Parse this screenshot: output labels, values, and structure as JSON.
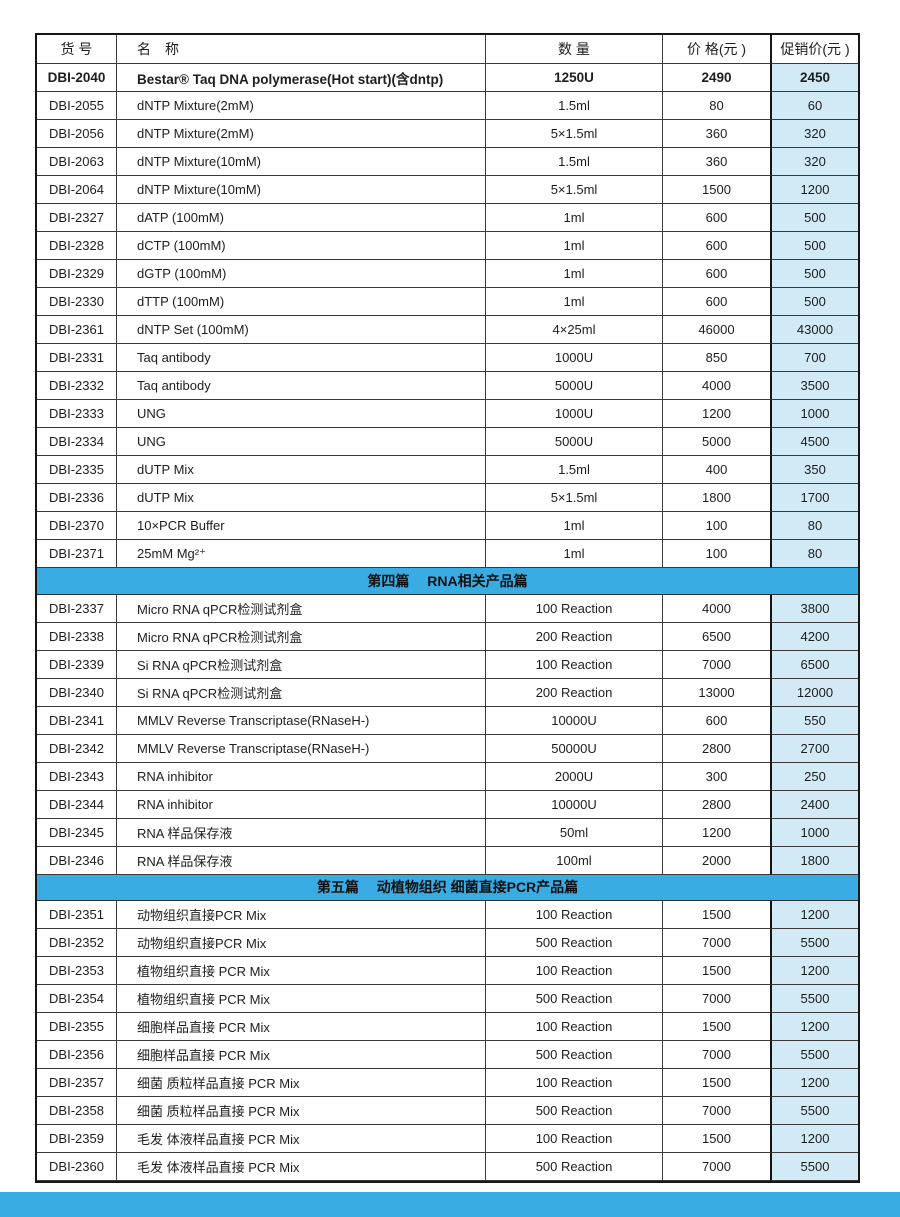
{
  "colors": {
    "band_blue": "#3aace4",
    "promo_cell_blue": "#d2e9f6",
    "border_dark": "#161616"
  },
  "table": {
    "headers": [
      "货 号",
      "名　称",
      "数 量",
      "价 格(元 )",
      "促销价(元 )"
    ],
    "sections": [
      {
        "band": null,
        "rows": [
          {
            "code": "DBI-2040",
            "name": "Bestar® Taq DNA polymerase(Hot start)(含dntp)",
            "qty": "1250U",
            "price": "2490",
            "promo": "2450",
            "bold": true
          },
          {
            "code": "DBI-2055",
            "name": "dNTP Mixture(2mM)",
            "qty": "1.5ml",
            "price": "80",
            "promo": "60"
          },
          {
            "code": "DBI-2056",
            "name": "dNTP Mixture(2mM)",
            "qty": "5×1.5ml",
            "price": "360",
            "promo": "320"
          },
          {
            "code": "DBI-2063",
            "name": "dNTP Mixture(10mM)",
            "qty": "1.5ml",
            "price": "360",
            "promo": "320"
          },
          {
            "code": "DBI-2064",
            "name": "dNTP Mixture(10mM)",
            "qty": "5×1.5ml",
            "price": "1500",
            "promo": "1200"
          },
          {
            "code": "DBI-2327",
            "name": "dATP (100mM)",
            "qty": "1ml",
            "price": "600",
            "promo": "500"
          },
          {
            "code": "DBI-2328",
            "name": "dCTP (100mM)",
            "qty": "1ml",
            "price": "600",
            "promo": "500"
          },
          {
            "code": "DBI-2329",
            "name": "dGTP (100mM)",
            "qty": "1ml",
            "price": "600",
            "promo": "500"
          },
          {
            "code": "DBI-2330",
            "name": "dTTP (100mM)",
            "qty": "1ml",
            "price": "600",
            "promo": "500"
          },
          {
            "code": "DBI-2361",
            "name": "dNTP Set (100mM)",
            "qty": "4×25ml",
            "price": "46000",
            "promo": "43000"
          },
          {
            "code": "DBI-2331",
            "name": "Taq antibody",
            "qty": "1000U",
            "price": "850",
            "promo": "700"
          },
          {
            "code": "DBI-2332",
            "name": "Taq antibody",
            "qty": "5000U",
            "price": "4000",
            "promo": "3500"
          },
          {
            "code": "DBI-2333",
            "name": "UNG",
            "qty": "1000U",
            "price": "1200",
            "promo": "1000"
          },
          {
            "code": "DBI-2334",
            "name": "UNG",
            "qty": "5000U",
            "price": "5000",
            "promo": "4500"
          },
          {
            "code": "DBI-2335",
            "name": "dUTP Mix",
            "qty": "1.5ml",
            "price": "400",
            "promo": "350"
          },
          {
            "code": "DBI-2336",
            "name": "dUTP Mix",
            "qty": "5×1.5ml",
            "price": "1800",
            "promo": "1700"
          },
          {
            "code": "DBI-2370",
            "name": "10×PCR Buffer",
            "qty": "1ml",
            "price": "100",
            "promo": "80"
          },
          {
            "code": "DBI-2371",
            "name": "25mM Mg²⁺",
            "qty": "1ml",
            "price": "100",
            "promo": "80"
          }
        ]
      },
      {
        "band": "第四篇　 RNA相关产品篇",
        "rows": [
          {
            "code": "DBI-2337",
            "name": "Micro RNA qPCR检测试剂盒",
            "qty": "100 Reaction",
            "price": "4000",
            "promo": "3800"
          },
          {
            "code": "DBI-2338",
            "name": "Micro RNA qPCR检测试剂盒",
            "qty": "200 Reaction",
            "price": "6500",
            "promo": "4200"
          },
          {
            "code": "DBI-2339",
            "name": "Si RNA qPCR检测试剂盒",
            "qty": "100 Reaction",
            "price": "7000",
            "promo": "6500"
          },
          {
            "code": "DBI-2340",
            "name": "Si RNA qPCR检测试剂盒",
            "qty": "200 Reaction",
            "price": "13000",
            "promo": "12000"
          },
          {
            "code": "DBI-2341",
            "name": "MMLV Reverse Transcriptase(RNaseH-)",
            "qty": "10000U",
            "price": "600",
            "promo": "550"
          },
          {
            "code": "DBI-2342",
            "name": "MMLV Reverse Transcriptase(RNaseH-)",
            "qty": "50000U",
            "price": "2800",
            "promo": "2700"
          },
          {
            "code": "DBI-2343",
            "name": "RNA inhibitor",
            "qty": "2000U",
            "price": "300",
            "promo": "250"
          },
          {
            "code": "DBI-2344",
            "name": "RNA inhibitor",
            "qty": "10000U",
            "price": "2800",
            "promo": "2400"
          },
          {
            "code": "DBI-2345",
            "name": "RNA 样品保存液",
            "qty": "50ml",
            "price": "1200",
            "promo": "1000"
          },
          {
            "code": "DBI-2346",
            "name": "RNA 样品保存液",
            "qty": "100ml",
            "price": "2000",
            "promo": "1800"
          }
        ]
      },
      {
        "band": "第五篇　 动植物组织 细菌直接PCR产品篇",
        "rows": [
          {
            "code": "DBI-2351",
            "name": "动物组织直接PCR Mix",
            "qty": "100 Reaction",
            "price": "1500",
            "promo": "1200"
          },
          {
            "code": "DBI-2352",
            "name": "动物组织直接PCR Mix",
            "qty": "500 Reaction",
            "price": "7000",
            "promo": "5500"
          },
          {
            "code": "DBI-2353",
            "name": "植物组织直接 PCR Mix",
            "qty": "100 Reaction",
            "price": "1500",
            "promo": "1200"
          },
          {
            "code": "DBI-2354",
            "name": "植物组织直接 PCR Mix",
            "qty": "500 Reaction",
            "price": "7000",
            "promo": "5500"
          },
          {
            "code": "DBI-2355",
            "name": "细胞样品直接 PCR Mix",
            "qty": "100 Reaction",
            "price": "1500",
            "promo": "1200"
          },
          {
            "code": "DBI-2356",
            "name": "细胞样品直接 PCR Mix",
            "qty": "500 Reaction",
            "price": "7000",
            "promo": "5500"
          },
          {
            "code": "DBI-2357",
            "name": "细菌 质粒样品直接 PCR Mix",
            "qty": "100 Reaction",
            "price": "1500",
            "promo": "1200"
          },
          {
            "code": "DBI-2358",
            "name": "细菌 质粒样品直接 PCR Mix",
            "qty": "500 Reaction",
            "price": "7000",
            "promo": "5500"
          },
          {
            "code": "DBI-2359",
            "name": "毛发 体液样品直接 PCR Mix",
            "qty": "100 Reaction",
            "price": "1500",
            "promo": "1200"
          },
          {
            "code": "DBI-2360",
            "name": "毛发 体液样品直接 PCR Mix",
            "qty": "500 Reaction",
            "price": "7000",
            "promo": "5500"
          }
        ]
      }
    ]
  }
}
